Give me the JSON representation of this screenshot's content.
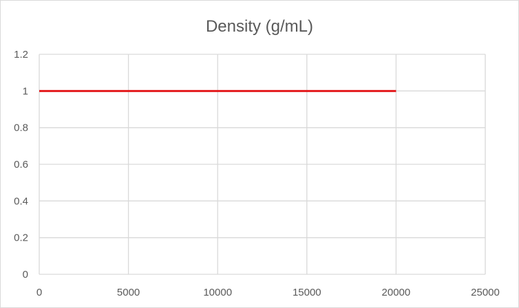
{
  "chart_data": {
    "type": "line",
    "title": "Density (g/mL)",
    "xlabel": "",
    "ylabel": "",
    "xlim": [
      0,
      25000
    ],
    "ylim": [
      0,
      1.2
    ],
    "x_ticks": [
      "0",
      "5000",
      "10000",
      "15000",
      "20000",
      "25000"
    ],
    "y_ticks": [
      "0",
      "0.2",
      "0.4",
      "0.6",
      "0.8",
      "1",
      "1.2"
    ],
    "grid": true,
    "legend": "none",
    "series": [
      {
        "color": "#e31a1c",
        "points": [
          {
            "x": 0,
            "y": 1.0
          },
          {
            "x": 20000,
            "y": 1.0
          }
        ]
      }
    ]
  }
}
